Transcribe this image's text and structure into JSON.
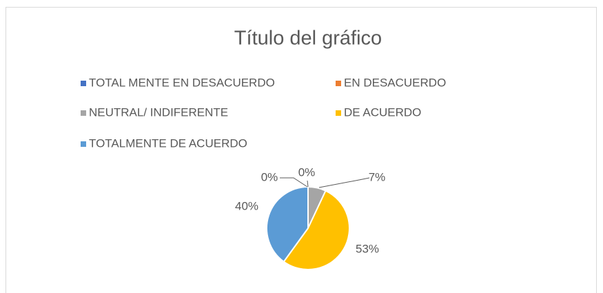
{
  "chart_data": {
    "type": "pie",
    "title": "Título del gráfico",
    "categories": [
      "TOTAL MENTE EN DESACUERDO",
      "EN DESACUERDO",
      "NEUTRAL/ INDIFERENTE",
      "DE ACUERDO",
      "TOTALMENTE DE ACUERDO"
    ],
    "values": [
      0,
      0,
      7,
      53,
      40
    ],
    "value_labels": [
      "0%",
      "0%",
      "7%",
      "53%",
      "40%"
    ],
    "colors": [
      "#4472c4",
      "#ed7d31",
      "#a5a5a5",
      "#ffc000",
      "#5b9bd5"
    ],
    "legend": "top"
  }
}
